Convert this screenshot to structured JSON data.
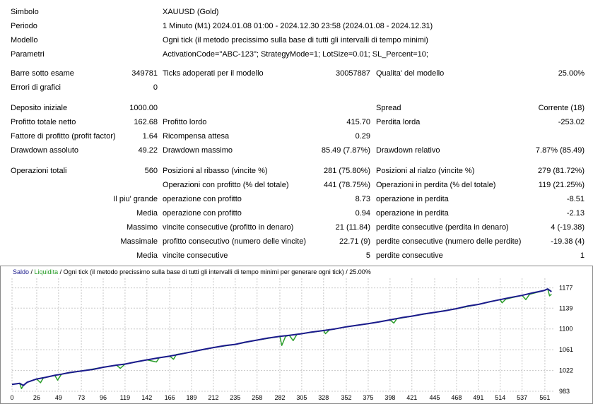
{
  "header": [
    {
      "label": "Simbolo",
      "value": "XAUUSD (Gold)"
    },
    {
      "label": "Periodo",
      "value": "1 Minuto (M1) 2024.01.08 01:00 - 2024.12.30 23:58 (2024.01.08 - 2024.12.31)"
    },
    {
      "label": "Modello",
      "value": "Ogni tick (il metodo precissimo sulla base di tutti gli intervalli di tempo minimi)"
    },
    {
      "label": "Parametri",
      "value": "ActivationCode=\"ABC-123\"; StrategyMode=1; LotSize=0.01; SL_Percent=10;"
    }
  ],
  "stats": {
    "bars_label": "Barre sotto esame",
    "bars": "349781",
    "ticks_label": "Ticks adoperati per il modello",
    "ticks": "30057887",
    "quality_label": "Qualita' del modello",
    "quality": "25.00%",
    "errors_label": "Errori di grafici",
    "errors": "0",
    "deposit_label": "Deposito iniziale",
    "deposit": "1000.00",
    "spread_label": "Spread",
    "spread": "Corrente (18)",
    "net_label": "Profitto totale netto",
    "net": "162.68",
    "gross_profit_label": "Profitto lordo",
    "gross_profit": "415.70",
    "gross_loss_label": "Perdita lorda",
    "gross_loss": "-253.02",
    "pf_label": "Fattore di profitto (profit factor)",
    "pf": "1.64",
    "payoff_label": "Ricompensa attesa",
    "payoff": "0.29",
    "dd_abs_label": "Drawdown assoluto",
    "dd_abs": "49.22",
    "dd_max_label": "Drawdown massimo",
    "dd_max": "85.49 (7.87%)",
    "dd_rel_label": "Drawdown relativo",
    "dd_rel": "7.87% (85.49)",
    "trades_label": "Operazioni totali",
    "trades": "560",
    "short_label": "Posizioni al ribasso (vincite %)",
    "short": "281 (75.80%)",
    "long_label": "Posizioni al rialzo (vincite %)",
    "long": "279 (81.72%)",
    "profit_trades_label": "Operazioni con profitto (% del totale)",
    "profit_trades": "441 (78.75%)",
    "loss_trades_label": "Operazioni in perdita (% del totale)",
    "loss_trades": "119 (21.25%)",
    "largest_label": "Il piu' grande",
    "largest_profit_label": "operazione con profitto",
    "largest_profit": "8.73",
    "largest_loss_label": "operazione in perdita",
    "largest_loss": "-8.51",
    "average_label": "Media",
    "average_profit_label": "operazione con profitto",
    "average_profit": "0.94",
    "average_loss_label": "operazione in perdita",
    "average_loss": "-2.13",
    "max_label": "Massimo",
    "max_wins_label": "vincite consecutive (profitto in denaro)",
    "max_wins": "21 (11.84)",
    "max_losses_label": "perdite consecutive (perdita in denaro)",
    "max_losses": "4 (-19.38)",
    "maximal_label": "Massimale",
    "maximal_profit_label": "profitto consecutivo (numero delle vincite)",
    "maximal_profit": "22.71 (9)",
    "maximal_loss_label": "perdite consecutive (numero delle perdite)",
    "maximal_loss": "-19.38 (4)",
    "avg_cons_label": "Media",
    "avg_wins_label": "vincite consecutive",
    "avg_wins": "5",
    "avg_losses_label": "perdite consecutive",
    "avg_losses": "1"
  },
  "chart_legend": {
    "balance": "Saldo",
    "sep1": " / ",
    "equity": "Liquidita",
    "sep2": " / ",
    "rest": "Ogni tick (il metodo precissimo sulla base di tutti gli intervalli di tempo minimi per generare ogni tick) / 25.00%"
  },
  "colors": {
    "balance": "#1a1a8c",
    "equity": "#2a9d2a",
    "grid": "#c8c8c8"
  },
  "chart_data": {
    "type": "line",
    "x_ticks": [
      0,
      26,
      49,
      73,
      96,
      119,
      142,
      166,
      189,
      212,
      235,
      258,
      282,
      305,
      328,
      352,
      375,
      398,
      421,
      445,
      468,
      491,
      514,
      537,
      561
    ],
    "y_ticks": [
      983,
      1022,
      1061,
      1100,
      1139,
      1177
    ],
    "xlim": [
      0,
      570
    ],
    "ylim": [
      983,
      1195
    ],
    "series": [
      {
        "name": "Saldo",
        "points": [
          [
            0,
            996
          ],
          [
            8,
            998
          ],
          [
            12,
            994
          ],
          [
            16,
            1000
          ],
          [
            26,
            1006
          ],
          [
            35,
            1009
          ],
          [
            45,
            1013
          ],
          [
            52,
            1015
          ],
          [
            60,
            1018
          ],
          [
            73,
            1021
          ],
          [
            85,
            1024
          ],
          [
            96,
            1028
          ],
          [
            110,
            1032
          ],
          [
            119,
            1034
          ],
          [
            130,
            1038
          ],
          [
            142,
            1042
          ],
          [
            155,
            1046
          ],
          [
            166,
            1049
          ],
          [
            178,
            1053
          ],
          [
            189,
            1057
          ],
          [
            200,
            1061
          ],
          [
            212,
            1065
          ],
          [
            225,
            1069
          ],
          [
            235,
            1071
          ],
          [
            245,
            1075
          ],
          [
            258,
            1079
          ],
          [
            270,
            1083
          ],
          [
            282,
            1086
          ],
          [
            292,
            1088
          ],
          [
            305,
            1091
          ],
          [
            315,
            1094
          ],
          [
            328,
            1097
          ],
          [
            340,
            1100
          ],
          [
            352,
            1104
          ],
          [
            364,
            1107
          ],
          [
            375,
            1110
          ],
          [
            386,
            1113
          ],
          [
            398,
            1117
          ],
          [
            410,
            1121
          ],
          [
            421,
            1124
          ],
          [
            433,
            1128
          ],
          [
            445,
            1131
          ],
          [
            456,
            1134
          ],
          [
            468,
            1138
          ],
          [
            480,
            1143
          ],
          [
            491,
            1146
          ],
          [
            503,
            1151
          ],
          [
            514,
            1155
          ],
          [
            525,
            1159
          ],
          [
            537,
            1163
          ],
          [
            549,
            1168
          ],
          [
            560,
            1172
          ],
          [
            564,
            1175
          ],
          [
            568,
            1170
          ]
        ]
      },
      {
        "name": "Liquidita",
        "points": [
          [
            0,
            996
          ],
          [
            8,
            998
          ],
          [
            10,
            988
          ],
          [
            12,
            994
          ],
          [
            16,
            1000
          ],
          [
            26,
            1006
          ],
          [
            30,
            999
          ],
          [
            33,
            1008
          ],
          [
            45,
            1013
          ],
          [
            48,
            1004
          ],
          [
            52,
            1015
          ],
          [
            73,
            1021
          ],
          [
            96,
            1028
          ],
          [
            110,
            1032
          ],
          [
            114,
            1026
          ],
          [
            119,
            1034
          ],
          [
            142,
            1042
          ],
          [
            152,
            1038
          ],
          [
            155,
            1046
          ],
          [
            166,
            1049
          ],
          [
            170,
            1043
          ],
          [
            173,
            1052
          ],
          [
            189,
            1057
          ],
          [
            212,
            1065
          ],
          [
            235,
            1071
          ],
          [
            258,
            1079
          ],
          [
            282,
            1086
          ],
          [
            284,
            1069
          ],
          [
            288,
            1086
          ],
          [
            292,
            1088
          ],
          [
            296,
            1078
          ],
          [
            300,
            1090
          ],
          [
            305,
            1091
          ],
          [
            328,
            1097
          ],
          [
            330,
            1091
          ],
          [
            334,
            1098
          ],
          [
            352,
            1104
          ],
          [
            375,
            1110
          ],
          [
            398,
            1117
          ],
          [
            402,
            1111
          ],
          [
            405,
            1119
          ],
          [
            421,
            1124
          ],
          [
            445,
            1131
          ],
          [
            468,
            1138
          ],
          [
            491,
            1146
          ],
          [
            514,
            1155
          ],
          [
            516,
            1149
          ],
          [
            520,
            1156
          ],
          [
            537,
            1163
          ],
          [
            541,
            1155
          ],
          [
            545,
            1165
          ],
          [
            560,
            1172
          ],
          [
            564,
            1175
          ],
          [
            566,
            1162
          ],
          [
            568,
            1165
          ]
        ]
      }
    ]
  }
}
